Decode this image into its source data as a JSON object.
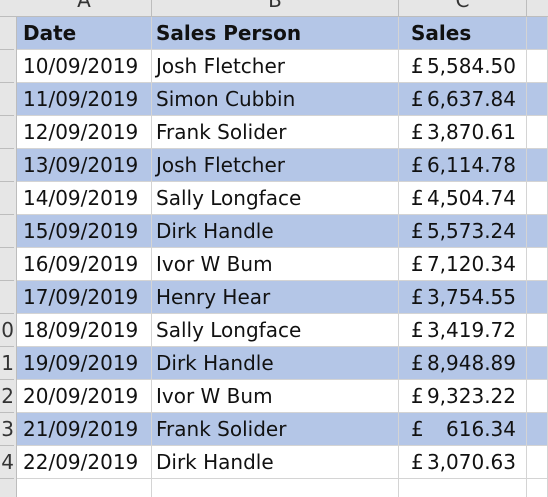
{
  "column_headers": [
    "A",
    "B",
    "C"
  ],
  "row_numbers": [
    "",
    "",
    "",
    "",
    "",
    "",
    "",
    "",
    "",
    "0",
    "1",
    "2",
    "3",
    "4",
    ""
  ],
  "header": {
    "date": "Date",
    "person": "Sales Person",
    "sales": "Sales"
  },
  "currency_symbol": "£",
  "rows": [
    {
      "date": "10/09/2019",
      "person": "Josh Fletcher",
      "amount": "5,584.50"
    },
    {
      "date": "11/09/2019",
      "person": "Simon Cubbin",
      "amount": "6,637.84"
    },
    {
      "date": "12/09/2019",
      "person": "Frank Solider",
      "amount": "3,870.61"
    },
    {
      "date": "13/09/2019",
      "person": "Josh Fletcher",
      "amount": "6,114.78"
    },
    {
      "date": "14/09/2019",
      "person": "Sally Longface",
      "amount": "4,504.74"
    },
    {
      "date": "15/09/2019",
      "person": "Dirk Handle",
      "amount": "5,573.24"
    },
    {
      "date": "16/09/2019",
      "person": "Ivor W Bum",
      "amount": "7,120.34"
    },
    {
      "date": "17/09/2019",
      "person": "Henry Hear",
      "amount": "3,754.55"
    },
    {
      "date": "18/09/2019",
      "person": "Sally Longface",
      "amount": "3,419.72"
    },
    {
      "date": "19/09/2019",
      "person": "Dirk Handle",
      "amount": "8,948.89"
    },
    {
      "date": "20/09/2019",
      "person": "Ivor W Bum",
      "amount": "9,323.22"
    },
    {
      "date": "21/09/2019",
      "person": "Frank Solider",
      "amount": "616.34"
    },
    {
      "date": "22/09/2019",
      "person": "Dirk Handle",
      "amount": "3,070.63"
    }
  ],
  "colors": {
    "band": "#b4c6e7",
    "header_strip": "#e6e6e6",
    "gridline": "#d4d4d4"
  }
}
